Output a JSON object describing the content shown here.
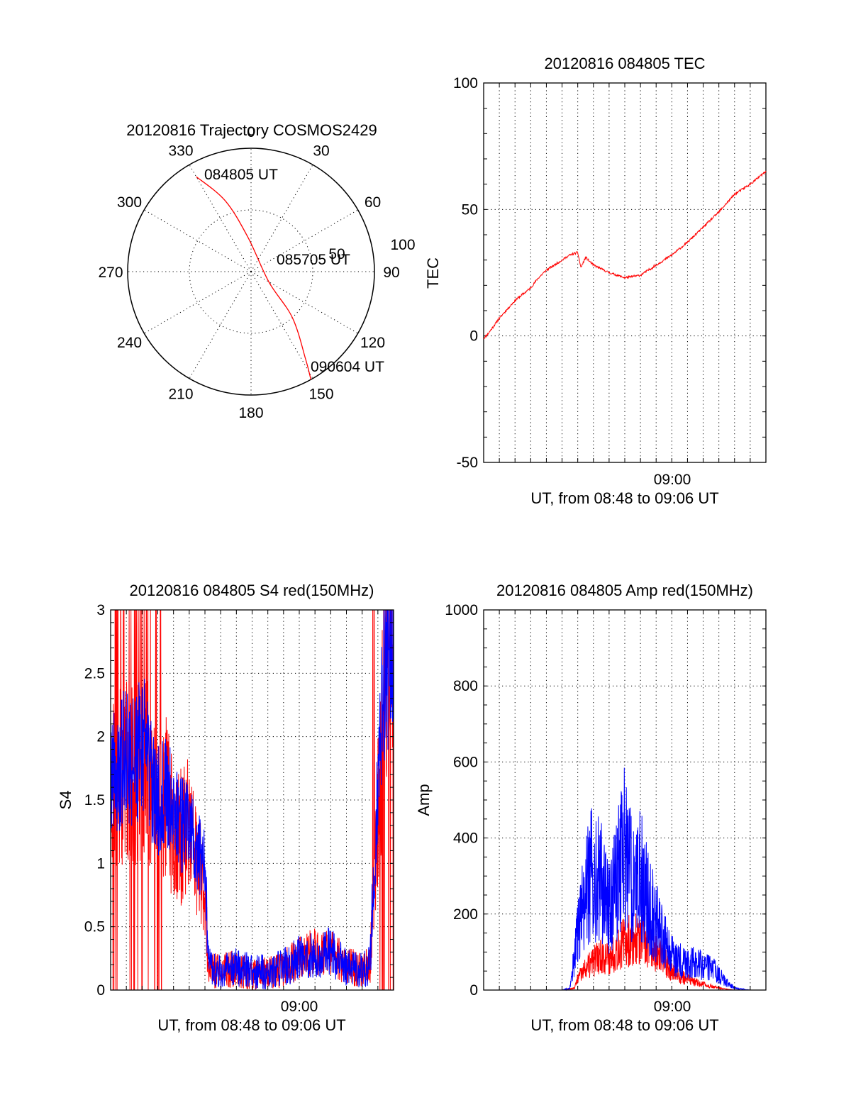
{
  "chart_data": [
    {
      "type": "polar",
      "title": "20120816 Trajectory COSMOS2429",
      "azimuth_labels": [
        "0",
        "30",
        "60",
        "90",
        "120",
        "150",
        "180",
        "210",
        "240",
        "270",
        "300",
        "330"
      ],
      "radial_labels": [
        "50",
        "100"
      ],
      "annotations": [
        "084805 UT",
        "085705 UT",
        "090604 UT"
      ],
      "trajectory": {
        "color": "#ff0000",
        "points": [
          {
            "azimuth": 330,
            "zenith": 80
          },
          {
            "azimuth": 340,
            "zenith": 55
          },
          {
            "azimuth": 355,
            "zenith": 25
          },
          {
            "azimuth": 120,
            "zenith": 15
          },
          {
            "azimuth": 138,
            "zenith": 45
          },
          {
            "azimuth": 148,
            "zenith": 75
          },
          {
            "azimuth": 151,
            "zenith": 90
          }
        ]
      }
    },
    {
      "type": "line",
      "title": "20120816 084805 TEC",
      "xlabel": "UT, from 08:48 to 09:06 UT",
      "ylabel": "TEC",
      "xlim": [
        0,
        18
      ],
      "ylim": [
        -50,
        100
      ],
      "yticks": [
        "-50",
        "0",
        "50",
        "100"
      ],
      "xticks": [
        {
          "value": 12,
          "label": "09:00"
        }
      ],
      "grid": true,
      "series": [
        {
          "color": "#ff0000",
          "x": [
            0,
            0.3,
            1,
            2,
            3,
            3.5,
            4,
            4.5,
            5,
            5.5,
            6,
            6.2,
            6.5,
            7,
            8,
            9,
            10,
            11,
            12,
            13,
            14,
            15,
            16,
            17,
            18
          ],
          "y": [
            -1,
            1,
            7,
            14,
            19,
            23,
            26,
            28,
            30,
            32,
            33,
            27,
            31,
            28,
            25,
            23,
            24,
            28,
            32,
            37,
            43,
            49,
            56,
            60,
            65
          ]
        }
      ]
    },
    {
      "type": "line",
      "title": "20120816 084805 S4 red(150MHz)",
      "xlabel": "UT, from 08:48 to 09:06 UT",
      "ylabel": "S4",
      "xlim": [
        0,
        18
      ],
      "ylim": [
        0,
        3
      ],
      "yticks": [
        "0",
        "0.5",
        "1",
        "1.5",
        "2",
        "2.5",
        "3"
      ],
      "xticks": [
        {
          "value": 12,
          "label": "09:00"
        }
      ],
      "grid": true,
      "series": [
        {
          "color": "#ff0000",
          "x": [
            0,
            0.5,
            1,
            1.5,
            2,
            2.5,
            3,
            3.5,
            4,
            4.5,
            5,
            5.5,
            6,
            6.2,
            6.5,
            7,
            8,
            9,
            10,
            11,
            12,
            13,
            14,
            15,
            16,
            16.5,
            17,
            17.5,
            18
          ],
          "y": [
            1.7,
            1.6,
            1.8,
            1.6,
            1.9,
            1.7,
            1.6,
            1.5,
            1.3,
            1.2,
            1.3,
            1.0,
            0.8,
            0.2,
            0.15,
            0.15,
            0.17,
            0.13,
            0.13,
            0.17,
            0.25,
            0.3,
            0.3,
            0.2,
            0.15,
            0.2,
            1.5,
            2.5,
            2.9
          ]
        },
        {
          "color": "#0000ff",
          "x": [
            0,
            0.5,
            1,
            1.5,
            2,
            2.5,
            3,
            3.5,
            4,
            4.5,
            5,
            5.5,
            6,
            6.2,
            6.5,
            7,
            8,
            9,
            10,
            11,
            12,
            13,
            14,
            15,
            16,
            16.5,
            17,
            17.5,
            18
          ],
          "y": [
            1.8,
            1.7,
            1.9,
            1.8,
            2.0,
            1.7,
            1.5,
            1.6,
            1.4,
            1.3,
            1.3,
            1.1,
            1.0,
            0.2,
            0.15,
            0.14,
            0.18,
            0.15,
            0.14,
            0.18,
            0.25,
            0.28,
            0.3,
            0.18,
            0.15,
            0.2,
            1.6,
            2.6,
            2.8
          ]
        }
      ]
    },
    {
      "type": "line",
      "title": "20120816 084805 Amp red(150MHz)",
      "xlabel": "UT, from 08:48 to 09:06 UT",
      "ylabel": "Amp",
      "xlim": [
        0,
        18
      ],
      "ylim": [
        0,
        1000
      ],
      "yticks": [
        "0",
        "200",
        "400",
        "600",
        "800",
        "1000"
      ],
      "xticks": [
        {
          "value": 12,
          "label": "09:00"
        }
      ],
      "grid": true,
      "series": [
        {
          "color": "#ff0000",
          "x": [
            0,
            5,
            5.8,
            6,
            6.5,
            7,
            7.5,
            8,
            8.5,
            9,
            9.5,
            10,
            10.5,
            11,
            11.5,
            12,
            12.5,
            13,
            13.5,
            14,
            14.5,
            15,
            15.5,
            16,
            17,
            18
          ],
          "y": [
            0,
            0,
            5,
            30,
            55,
            75,
            95,
            80,
            110,
            125,
            135,
            130,
            120,
            100,
            75,
            50,
            35,
            30,
            20,
            15,
            10,
            5,
            2,
            0,
            0,
            0
          ]
        },
        {
          "color": "#0000ff",
          "x": [
            0,
            5,
            5.5,
            6,
            6.5,
            7,
            7.5,
            8,
            8.5,
            9,
            9.5,
            10,
            10.5,
            11,
            11.5,
            12,
            12.5,
            13,
            13.5,
            14,
            14.5,
            15,
            15.5,
            16,
            17,
            18
          ],
          "y": [
            0,
            0,
            5,
            150,
            250,
            320,
            280,
            220,
            300,
            380,
            280,
            300,
            230,
            180,
            140,
            90,
            80,
            75,
            70,
            65,
            60,
            40,
            20,
            5,
            0,
            0
          ]
        }
      ]
    }
  ]
}
